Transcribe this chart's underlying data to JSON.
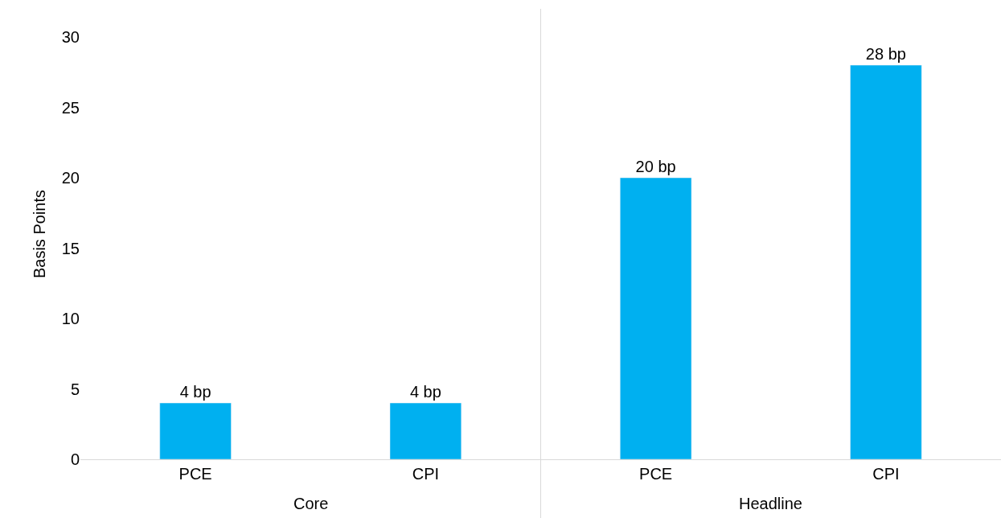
{
  "chart_data": {
    "type": "bar",
    "ylabel": "Basis Points",
    "categories": [
      "PCE",
      "CPI",
      "PCE",
      "CPI"
    ],
    "values": [
      4,
      4,
      20,
      28
    ],
    "color": "#00b0f0",
    "value_labels": [
      "4 bp",
      "4 bp",
      "20 bp",
      "28 bp"
    ],
    "annotations": [
      "Core",
      "Headline"
    ],
    "ylim": [
      0,
      32
    ],
    "yticks": [
      0,
      5,
      10,
      15,
      20,
      25,
      30
    ]
  }
}
